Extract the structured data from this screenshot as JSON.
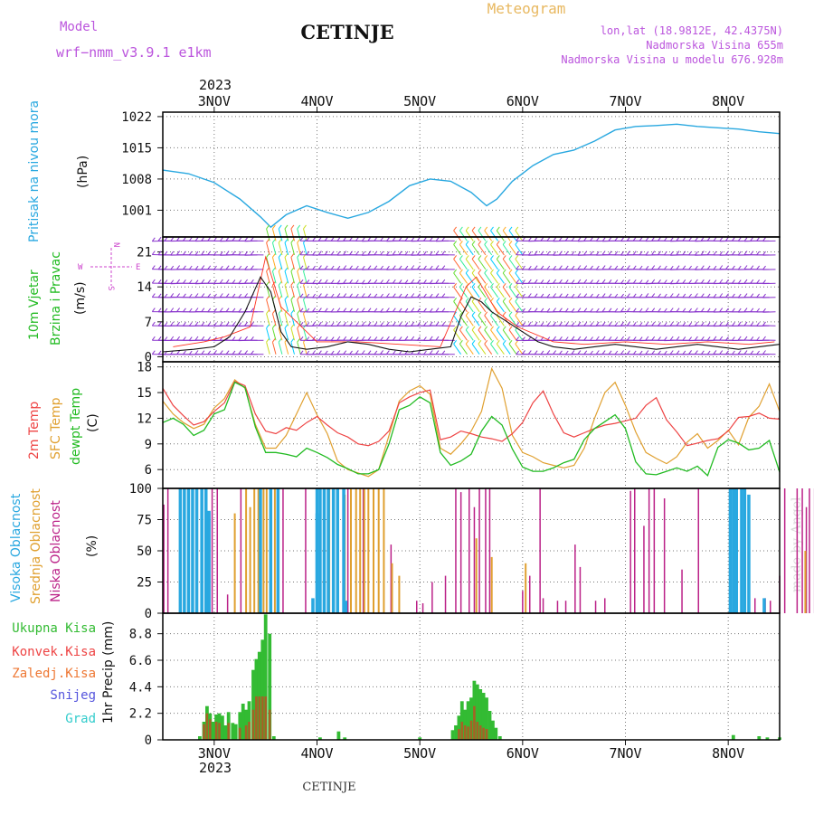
{
  "header": {
    "model_label": "Model",
    "model_name": "wrf−nmm_v3.9.1  e1km",
    "title": "CETINJE",
    "meteogram_label": "Meteogram",
    "lonlat": "lon,lat (18.9812E, 42.4375N)",
    "altitude": "Nadmorska Visina 655m",
    "model_altitude": "Nadmorska Visina u modelu 676.928m",
    "footer_title": "CETINJE",
    "watermark": "made by Angel"
  },
  "colors": {
    "pressure": "#29a8e0",
    "wind_label": "#22bb22",
    "compass": "#cc44cc",
    "temp2m": "#ee4444",
    "sfc": "#e0a030",
    "dewpt": "#22bb22",
    "high_cloud": "#29a8e0",
    "mid_cloud": "#e0a030",
    "low_cloud": "#bb2288",
    "total_precip": "#33bb33",
    "conv_precip": "#ee4444",
    "frozen": "#ee7733",
    "snow": "#5555dd",
    "hail": "#33cccc",
    "model_text": "#bb55dd",
    "meteogram_text": "#e8b860"
  },
  "chart_data": {
    "x_axis": {
      "top_year": "2023",
      "bottom_year": "2023",
      "date_labels": [
        "3NOV",
        "4NOV",
        "5NOV",
        "6NOV",
        "7NOV",
        "8NOV"
      ],
      "day_ticks": [
        1,
        2,
        3,
        4,
        5,
        6
      ],
      "range": [
        0.5,
        6.5
      ]
    },
    "pressure": {
      "type": "line",
      "title_label": "Pritisak na nivou mora",
      "unit_label": "(hPa)",
      "ylim": [
        995,
        1023
      ],
      "ticks": [
        "1001",
        "1008",
        "1015",
        "1022"
      ],
      "tick_values": [
        1001,
        1008,
        1015,
        1022
      ],
      "x": [
        0.5,
        0.75,
        1.0,
        1.25,
        1.45,
        1.55,
        1.7,
        1.9,
        2.1,
        2.3,
        2.5,
        2.7,
        2.9,
        3.1,
        3.3,
        3.5,
        3.65,
        3.75,
        3.9,
        4.1,
        4.3,
        4.5,
        4.7,
        4.9,
        5.1,
        5.3,
        5.5,
        5.7,
        5.9,
        6.1,
        6.3,
        6.5
      ],
      "y": [
        1010,
        1009.2,
        1007.2,
        1003.5,
        999.5,
        997.2,
        1000,
        1002,
        1000.5,
        999.2,
        1000.5,
        1003,
        1006.5,
        1008,
        1007.5,
        1005,
        1002,
        1003.5,
        1007.5,
        1011,
        1013.5,
        1014.5,
        1016.5,
        1019,
        1019.8,
        1020,
        1020.3,
        1019.8,
        1019.5,
        1019.2,
        1018.6,
        1018.2
      ]
    },
    "wind": {
      "type": "line",
      "title_label": "10m Vjetar",
      "subtitle_label": "Brzina i Pravac",
      "unit_label": "(m/s)",
      "compass": {
        "n": "N",
        "w": "W",
        "e": "E",
        "s": "S"
      },
      "ylim": [
        -1,
        24
      ],
      "ticks": [
        "0",
        "7",
        "14",
        "21"
      ],
      "tick_values": [
        0,
        7,
        14,
        21
      ],
      "speed_x": [
        0.5,
        0.8,
        1.0,
        1.15,
        1.3,
        1.45,
        1.55,
        1.65,
        1.75,
        1.9,
        2.1,
        2.3,
        2.5,
        2.7,
        2.9,
        3.1,
        3.3,
        3.4,
        3.5,
        3.6,
        3.7,
        3.85,
        4.0,
        4.15,
        4.3,
        4.5,
        4.7,
        4.9,
        5.1,
        5.3,
        5.5,
        5.7,
        5.9,
        6.1,
        6.3,
        6.5
      ],
      "speed_y": [
        1,
        1.5,
        2,
        4,
        9,
        16,
        13,
        5,
        2,
        1.5,
        2,
        3,
        2.5,
        1.5,
        1,
        1.5,
        2,
        8,
        12,
        11,
        9,
        7,
        5,
        3,
        2,
        1.5,
        2,
        2.5,
        2,
        1.5,
        2,
        2.5,
        2,
        1.5,
        2,
        2.5
      ],
      "barb_rows": [
        0.5,
        3.3,
        6.2,
        9,
        11.9,
        14.7,
        17.5,
        20.4,
        23.2
      ],
      "gust_x": [
        0.6,
        0.9,
        1.1,
        1.35,
        1.5,
        1.65,
        2.0,
        2.4,
        2.8,
        3.2,
        3.45,
        3.55,
        3.75,
        3.95,
        4.3,
        4.6,
        5.0,
        5.4,
        5.8,
        6.2,
        6.45
      ],
      "gust_y": [
        2,
        3,
        4,
        6,
        20,
        10,
        3,
        3,
        2.5,
        2,
        14,
        16,
        9,
        6,
        3,
        2.5,
        3,
        2.5,
        3,
        2.5,
        3
      ]
    },
    "temperature": {
      "type": "line",
      "labels": {
        "t2m": "2m Temp",
        "sfc": "SFC Temp",
        "dew": "dewpt Temp"
      },
      "unit_label": "(C)",
      "ylim": [
        3.8,
        18.6
      ],
      "ticks": [
        "6",
        "9",
        "12",
        "15",
        "18"
      ],
      "tick_values": [
        6,
        9,
        12,
        15,
        18
      ],
      "x": [
        0.5,
        0.6,
        0.7,
        0.8,
        0.9,
        1.0,
        1.1,
        1.2,
        1.3,
        1.4,
        1.5,
        1.6,
        1.7,
        1.8,
        1.9,
        2.0,
        2.1,
        2.2,
        2.3,
        2.4,
        2.5,
        2.6,
        2.7,
        2.8,
        2.9,
        3.0,
        3.1,
        3.2,
        3.3,
        3.4,
        3.5,
        3.6,
        3.7,
        3.8,
        3.9,
        4.0,
        4.1,
        4.2,
        4.3,
        4.4,
        4.5,
        4.6,
        4.7,
        4.8,
        4.9,
        5.0,
        5.1,
        5.2,
        5.3,
        5.4,
        5.5,
        5.6,
        5.7,
        5.8,
        5.9,
        6.0,
        6.1,
        6.2,
        6.3,
        6.4,
        6.5
      ],
      "t2m": [
        15.5,
        13.5,
        12.3,
        11.2,
        11.6,
        12.8,
        13.8,
        16.3,
        15.8,
        12.5,
        10.5,
        10.2,
        10.9,
        10.6,
        11.5,
        12.2,
        11.2,
        10.3,
        9.8,
        9.0,
        8.8,
        9.3,
        10.5,
        13.8,
        14.5,
        15.0,
        15.3,
        9.5,
        9.8,
        10.5,
        10.2,
        9.8,
        9.6,
        9.3,
        10.2,
        11.5,
        13.8,
        15.2,
        12.5,
        10.3,
        9.8,
        10.3,
        10.8,
        11.2,
        11.4,
        11.7,
        12.0,
        13.5,
        14.4,
        11.8,
        10.4,
        8.8,
        9.1,
        9.4,
        9.6,
        10.5,
        12.1,
        12.2,
        12.6,
        12.0,
        11.9
      ],
      "sfc": [
        14.0,
        12.5,
        11.5,
        10.8,
        11.3,
        13.2,
        14.3,
        16.5,
        15.5,
        11.3,
        8.5,
        8.5,
        10.0,
        12.5,
        15.0,
        12.4,
        10.2,
        7.0,
        6.0,
        5.6,
        5.2,
        6.0,
        10.0,
        14.0,
        15.2,
        15.8,
        14.8,
        8.5,
        7.8,
        9.0,
        10.5,
        12.8,
        17.8,
        15.5,
        10.0,
        8.0,
        7.5,
        6.8,
        6.5,
        6.2,
        6.5,
        8.5,
        12.0,
        15.0,
        16.2,
        13.5,
        10.4,
        8.0,
        7.3,
        6.7,
        7.5,
        9.2,
        10.2,
        8.5,
        9.4,
        10.6,
        8.9,
        12.1,
        13.4,
        16.0,
        12.8
      ],
      "dew": [
        11.5,
        12.0,
        11.3,
        10.0,
        10.6,
        12.5,
        13.0,
        16.2,
        15.6,
        11.0,
        8.0,
        8.0,
        7.8,
        7.5,
        8.5,
        8.0,
        7.4,
        6.6,
        6.1,
        5.5,
        5.5,
        6.0,
        9.0,
        13.0,
        13.5,
        14.5,
        13.8,
        8.0,
        6.5,
        7.0,
        7.8,
        10.5,
        12.2,
        11.2,
        8.4,
        6.3,
        5.8,
        5.8,
        6.2,
        6.8,
        7.2,
        9.5,
        10.8,
        11.6,
        12.4,
        10.8,
        6.9,
        5.5,
        5.4,
        5.8,
        6.2,
        5.8,
        6.4,
        5.3,
        8.6,
        9.5,
        9.1,
        8.3,
        8.5,
        9.4,
        5.7
      ]
    },
    "clouds": {
      "type": "bar",
      "labels": {
        "high": "Visoka Oblacnost",
        "mid": "Srednja Oblacnost",
        "low": "Niska Oblacnost"
      },
      "unit_label": "(%)",
      "ylim": [
        0,
        100
      ],
      "ticks": [
        "0",
        "25",
        "50",
        "75",
        "100"
      ],
      "tick_values": [
        0,
        25,
        50,
        75,
        100
      ],
      "high": [
        [
          0.67,
          100
        ],
        [
          0.71,
          100
        ],
        [
          0.75,
          100
        ],
        [
          0.79,
          100
        ],
        [
          0.83,
          100
        ],
        [
          0.88,
          100
        ],
        [
          0.92,
          100
        ],
        [
          0.95,
          82
        ],
        [
          1.45,
          100
        ],
        [
          1.55,
          100
        ],
        [
          1.62,
          100
        ],
        [
          2.0,
          100
        ],
        [
          2.03,
          100
        ],
        [
          2.07,
          100
        ],
        [
          2.11,
          100
        ],
        [
          2.16,
          100
        ],
        [
          2.2,
          100
        ],
        [
          2.26,
          100
        ],
        [
          2.0,
          80
        ],
        [
          1.96,
          12
        ],
        [
          2.28,
          10
        ],
        [
          6.35,
          12
        ],
        [
          6.02,
          100
        ],
        [
          6.05,
          100
        ],
        [
          6.08,
          100
        ],
        [
          6.13,
          100
        ],
        [
          6.16,
          100
        ],
        [
          6.2,
          95
        ]
      ],
      "mid": [
        [
          1.2,
          80
        ],
        [
          1.31,
          100
        ],
        [
          1.35,
          85
        ],
        [
          1.39,
          100
        ],
        [
          1.43,
          100
        ],
        [
          1.48,
          100
        ],
        [
          1.51,
          100
        ],
        [
          1.59,
          100
        ],
        [
          2.12,
          100
        ],
        [
          2.27,
          95
        ],
        [
          2.33,
          100
        ],
        [
          2.38,
          100
        ],
        [
          2.42,
          100
        ],
        [
          2.46,
          100
        ],
        [
          2.5,
          100
        ],
        [
          2.55,
          100
        ],
        [
          2.6,
          100
        ],
        [
          2.65,
          100
        ],
        [
          2.73,
          40
        ],
        [
          2.8,
          30
        ],
        [
          3.55,
          60
        ],
        [
          3.7,
          45
        ],
        [
          4.03,
          40
        ],
        [
          6.75,
          50
        ]
      ],
      "low": [
        [
          0.51,
          87
        ],
        [
          0.55,
          100
        ],
        [
          0.98,
          100
        ],
        [
          1.03,
          100
        ],
        [
          1.13,
          15
        ],
        [
          1.26,
          100
        ],
        [
          1.67,
          100
        ],
        [
          1.89,
          100
        ],
        [
          2.3,
          100
        ],
        [
          2.45,
          100
        ],
        [
          2.72,
          55
        ],
        [
          2.97,
          10
        ],
        [
          3.03,
          8
        ],
        [
          3.12,
          25
        ],
        [
          3.25,
          30
        ],
        [
          3.35,
          100
        ],
        [
          3.4,
          97
        ],
        [
          3.48,
          100
        ],
        [
          3.53,
          85
        ],
        [
          3.58,
          100
        ],
        [
          3.64,
          100
        ],
        [
          3.68,
          100
        ],
        [
          4.0,
          18
        ],
        [
          4.07,
          30
        ],
        [
          4.17,
          100
        ],
        [
          4.2,
          12
        ],
        [
          4.34,
          10
        ],
        [
          4.42,
          10
        ],
        [
          4.51,
          55
        ],
        [
          4.56,
          37
        ],
        [
          4.71,
          10
        ],
        [
          4.8,
          12
        ],
        [
          5.05,
          98
        ],
        [
          5.09,
          100
        ],
        [
          5.18,
          70
        ],
        [
          5.23,
          100
        ],
        [
          5.28,
          100
        ],
        [
          5.38,
          92
        ],
        [
          5.55,
          35
        ],
        [
          5.71,
          100
        ],
        [
          6.26,
          12
        ],
        [
          6.36,
          12
        ],
        [
          6.5,
          30
        ],
        [
          6.55,
          100
        ],
        [
          6.67,
          100
        ],
        [
          6.72,
          100
        ],
        [
          6.76,
          85
        ],
        [
          6.79,
          100
        ],
        [
          6.84,
          100
        ],
        [
          6.9,
          100
        ],
        [
          6.99,
          100
        ],
        [
          7.03,
          100
        ],
        [
          6.41,
          10
        ],
        [
          6.95,
          10
        ]
      ]
    },
    "precip": {
      "type": "bar",
      "labels": {
        "total": "Ukupna Kisa",
        "conv": "Konvek.Kisa",
        "frozen": "Zaledj.Kisa",
        "snow": "Snijeg",
        "hail": "Grad"
      },
      "unit_label": "1hr Precip (mm)",
      "ylim": [
        0,
        10.5
      ],
      "ticks": [
        "0",
        "2.2",
        "4.4",
        "6.6",
        "8.8"
      ],
      "tick_values": [
        0,
        2.2,
        4.4,
        6.6,
        8.8
      ],
      "total": [
        [
          0.86,
          0.3
        ],
        [
          0.9,
          1.5
        ],
        [
          0.93,
          2.8
        ],
        [
          0.96,
          2.2
        ],
        [
          0.99,
          1.5
        ],
        [
          1.02,
          2.1
        ],
        [
          1.05,
          2.2
        ],
        [
          1.08,
          2.0
        ],
        [
          1.11,
          1.2
        ],
        [
          1.14,
          2.3
        ],
        [
          1.18,
          1.4
        ],
        [
          1.21,
          1.3
        ],
        [
          1.25,
          2.3
        ],
        [
          1.28,
          3.0
        ],
        [
          1.31,
          2.5
        ],
        [
          1.34,
          3.2
        ],
        [
          1.38,
          5.8
        ],
        [
          1.41,
          6.7
        ],
        [
          1.44,
          7.3
        ],
        [
          1.47,
          8.3
        ],
        [
          1.5,
          10.4
        ],
        [
          1.54,
          8.8
        ],
        [
          1.58,
          0.3
        ],
        [
          2.03,
          0.2
        ],
        [
          2.21,
          0.7
        ],
        [
          2.27,
          0.2
        ],
        [
          3.0,
          0.2
        ],
        [
          3.32,
          0.8
        ],
        [
          3.35,
          1.2
        ],
        [
          3.38,
          2.0
        ],
        [
          3.41,
          3.2
        ],
        [
          3.44,
          2.5
        ],
        [
          3.47,
          3.2
        ],
        [
          3.5,
          3.5
        ],
        [
          3.53,
          4.9
        ],
        [
          3.56,
          4.6
        ],
        [
          3.59,
          4.2
        ],
        [
          3.62,
          3.9
        ],
        [
          3.65,
          3.5
        ],
        [
          3.68,
          2.4
        ],
        [
          3.71,
          1.6
        ],
        [
          3.74,
          1.0
        ],
        [
          3.78,
          0.3
        ],
        [
          6.05,
          0.4
        ],
        [
          6.3,
          0.3
        ],
        [
          6.38,
          0.2
        ],
        [
          6.5,
          0.2
        ]
      ],
      "conv": [
        [
          0.9,
          1.3
        ],
        [
          0.93,
          2.2
        ],
        [
          0.96,
          1.7
        ],
        [
          1.02,
          1.5
        ],
        [
          1.05,
          1.4
        ],
        [
          1.14,
          1.4
        ],
        [
          1.25,
          1.0
        ],
        [
          1.31,
          1.2
        ],
        [
          1.34,
          1.5
        ],
        [
          1.38,
          2.5
        ],
        [
          1.41,
          3.6
        ],
        [
          1.44,
          3.6
        ],
        [
          1.47,
          3.6
        ],
        [
          1.5,
          3.6
        ],
        [
          1.54,
          2.5
        ],
        [
          3.38,
          0.9
        ],
        [
          3.41,
          1.5
        ],
        [
          3.44,
          1.2
        ],
        [
          3.47,
          1.1
        ],
        [
          3.5,
          1.6
        ],
        [
          3.53,
          2.8
        ],
        [
          3.56,
          1.5
        ],
        [
          3.59,
          1.2
        ],
        [
          3.62,
          1.0
        ],
        [
          3.65,
          0.9
        ]
      ]
    }
  }
}
